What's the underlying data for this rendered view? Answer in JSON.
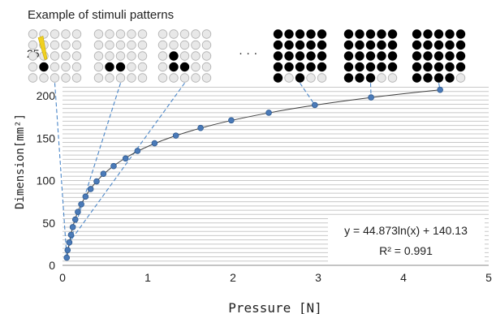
{
  "chart_data": {
    "type": "scatter",
    "title": "Example of stimuli patterns",
    "xlabel": "Pressure [N]",
    "ylabel": "Dimension[mm²]",
    "xlim": [
      0,
      5
    ],
    "ylim": [
      0,
      200
    ],
    "xticks": [
      0,
      1,
      2,
      3,
      4,
      5
    ],
    "yticks": [
      0,
      50,
      100,
      150,
      200
    ],
    "tick_label_cut": "25",
    "grid": "horizontal",
    "series": [
      {
        "points": [
          [
            0.05,
            9
          ],
          [
            0.06,
            18
          ],
          [
            0.08,
            27
          ],
          [
            0.1,
            36
          ],
          [
            0.12,
            45
          ],
          [
            0.15,
            54
          ],
          [
            0.18,
            63
          ],
          [
            0.22,
            72
          ],
          [
            0.27,
            81
          ],
          [
            0.33,
            90
          ],
          [
            0.4,
            99
          ],
          [
            0.48,
            108
          ],
          [
            0.6,
            117
          ],
          [
            0.74,
            126
          ],
          [
            0.88,
            135
          ],
          [
            1.08,
            144
          ],
          [
            1.33,
            153
          ],
          [
            1.62,
            162
          ],
          [
            1.98,
            171
          ],
          [
            2.42,
            180
          ],
          [
            2.96,
            189
          ],
          [
            3.62,
            198
          ],
          [
            4.43,
            207
          ]
        ]
      }
    ],
    "fit": {
      "a": 44.873,
      "b": 140.13,
      "equation": "y = 44.873ln(x) + 140.13",
      "r2": "R² = 0.991"
    },
    "ellipsis": "· · ·",
    "patterns": [
      {
        "filled": [
          [
            3,
            1
          ]
        ],
        "cursor": true
      },
      {
        "filled": [
          [
            3,
            1
          ],
          [
            3,
            2
          ]
        ]
      },
      {
        "filled": [
          [
            2,
            1
          ],
          [
            3,
            1
          ],
          [
            3,
            2
          ]
        ]
      },
      {
        "filled": [
          [
            0,
            0
          ],
          [
            0,
            1
          ],
          [
            0,
            2
          ],
          [
            0,
            3
          ],
          [
            0,
            4
          ],
          [
            1,
            0
          ],
          [
            1,
            1
          ],
          [
            1,
            2
          ],
          [
            1,
            3
          ],
          [
            1,
            4
          ],
          [
            2,
            0
          ],
          [
            2,
            1
          ],
          [
            2,
            2
          ],
          [
            2,
            3
          ],
          [
            2,
            4
          ],
          [
            3,
            0
          ],
          [
            3,
            1
          ],
          [
            3,
            2
          ],
          [
            3,
            3
          ],
          [
            3,
            4
          ],
          [
            4,
            0
          ],
          [
            4,
            2
          ]
        ]
      },
      {
        "filled": [
          [
            0,
            0
          ],
          [
            0,
            1
          ],
          [
            0,
            2
          ],
          [
            0,
            3
          ],
          [
            0,
            4
          ],
          [
            1,
            0
          ],
          [
            1,
            1
          ],
          [
            1,
            2
          ],
          [
            1,
            3
          ],
          [
            1,
            4
          ],
          [
            2,
            0
          ],
          [
            2,
            1
          ],
          [
            2,
            2
          ],
          [
            2,
            3
          ],
          [
            2,
            4
          ],
          [
            3,
            0
          ],
          [
            3,
            1
          ],
          [
            3,
            2
          ],
          [
            3,
            3
          ],
          [
            3,
            4
          ],
          [
            4,
            0
          ],
          [
            4,
            1
          ],
          [
            4,
            2
          ]
        ]
      },
      {
        "filled": [
          [
            0,
            0
          ],
          [
            0,
            1
          ],
          [
            0,
            2
          ],
          [
            0,
            3
          ],
          [
            0,
            4
          ],
          [
            1,
            0
          ],
          [
            1,
            1
          ],
          [
            1,
            2
          ],
          [
            1,
            3
          ],
          [
            1,
            4
          ],
          [
            2,
            0
          ],
          [
            2,
            1
          ],
          [
            2,
            2
          ],
          [
            2,
            3
          ],
          [
            2,
            4
          ],
          [
            3,
            0
          ],
          [
            3,
            1
          ],
          [
            3,
            2
          ],
          [
            3,
            3
          ],
          [
            3,
            4
          ],
          [
            4,
            0
          ],
          [
            4,
            1
          ],
          [
            4,
            2
          ],
          [
            4,
            3
          ]
        ]
      }
    ],
    "connectors": [
      {
        "pattern": 0,
        "point": 0
      },
      {
        "pattern": 1,
        "point": 1
      },
      {
        "pattern": 2,
        "point": 2
      },
      {
        "pattern": 3,
        "point": 20
      },
      {
        "pattern": 4,
        "point": 21
      },
      {
        "pattern": 5,
        "point": 22
      }
    ],
    "colors": {
      "point": "#4a7ab8",
      "point_edge": "#2e5a90",
      "fit_line": "#404040",
      "connector": "#4a86c8",
      "grid": "#c8c8c8",
      "dot_filled": "#000000",
      "dot_empty": "#e8e8e8",
      "dot_empty_edge": "#b0b0b0",
      "cursor": "#f0d020"
    }
  }
}
